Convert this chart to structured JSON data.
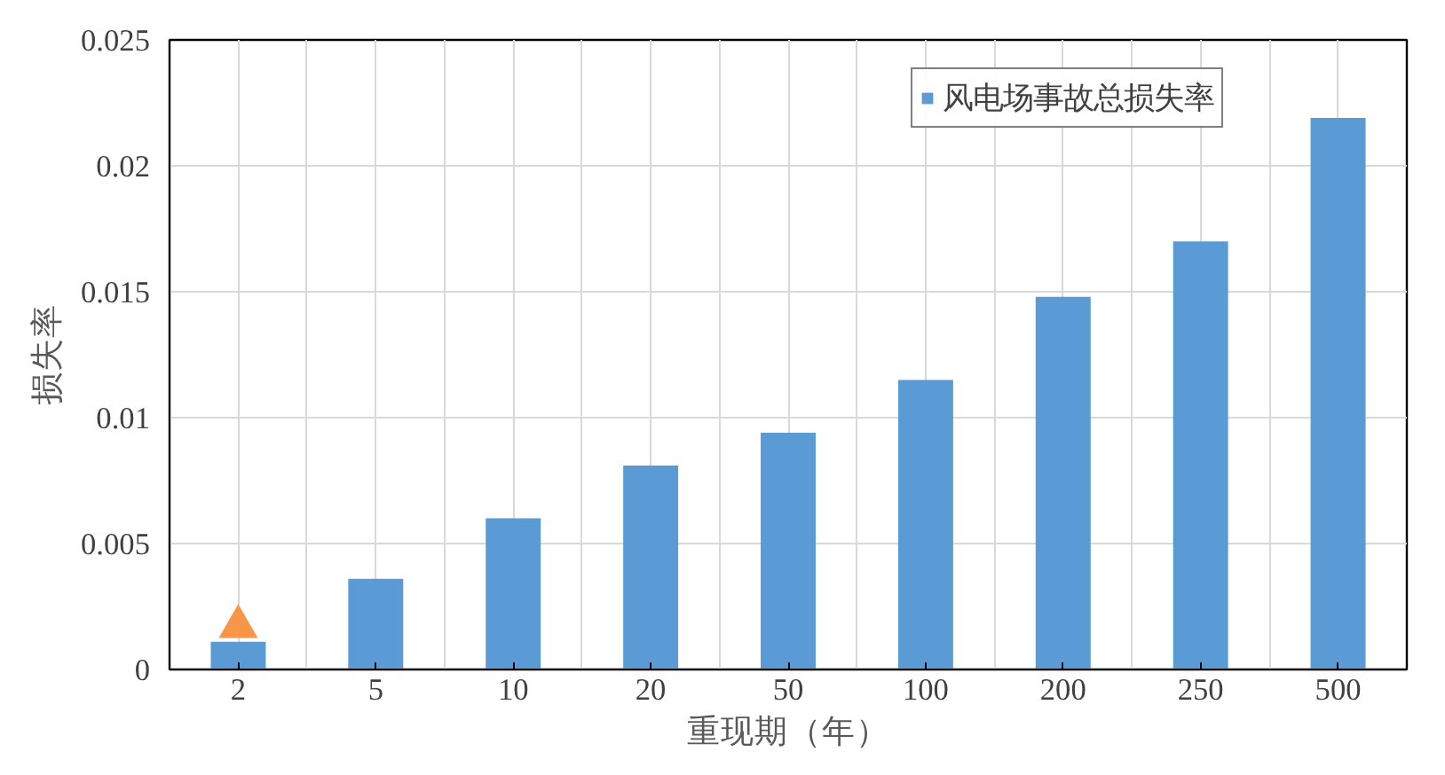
{
  "chart_data": {
    "type": "bar",
    "xlabel": "重现期（年）",
    "ylabel": "损失率",
    "categories": [
      "2",
      "5",
      "10",
      "20",
      "50",
      "100",
      "200",
      "250",
      "500"
    ],
    "series": [
      {
        "name": "风电场事故总损失率",
        "color": "#5b9bd5",
        "values": [
          0.0011,
          0.0036,
          0.006,
          0.0081,
          0.0094,
          0.0115,
          0.0148,
          0.017,
          0.0219
        ]
      },
      {
        "type": "scatter",
        "marker": "triangle",
        "color": "#f79646",
        "x": [
          "2"
        ],
        "values": [
          0.0017
        ]
      }
    ],
    "ylim": [
      0,
      0.025
    ],
    "yticks": [
      0,
      0.005,
      0.01,
      0.015,
      0.02,
      0.025
    ],
    "grid": true,
    "legend": "top right"
  }
}
